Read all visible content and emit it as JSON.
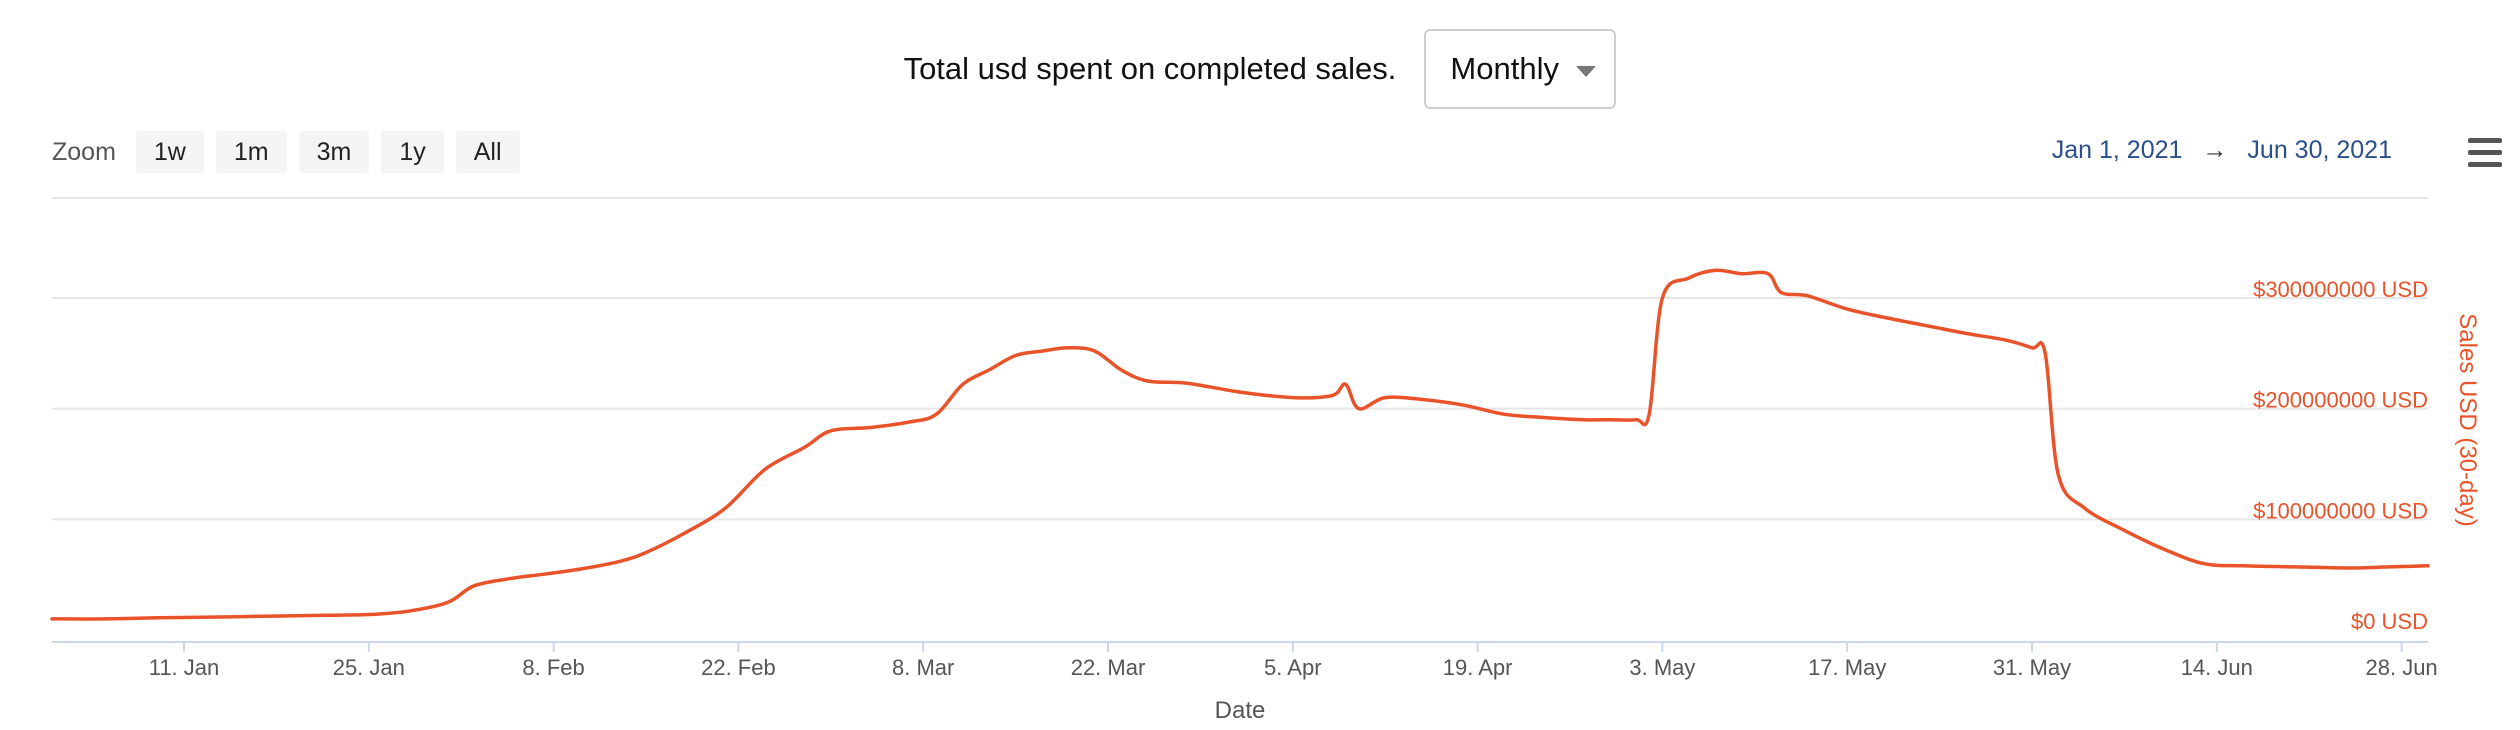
{
  "header": {
    "title": "Total usd spent on completed sales.",
    "period_select": "Monthly"
  },
  "zoom": {
    "label": "Zoom",
    "buttons": [
      "1w",
      "1m",
      "3m",
      "1y",
      "All"
    ]
  },
  "range": {
    "from": "Jan 1, 2021",
    "arrow": "→",
    "to": "Jun 30, 2021"
  },
  "colors": {
    "series": "#e8532a",
    "grid": "#e6e6e6",
    "axis": "#ccd6eb"
  },
  "icons": {
    "menu": "hamburger-menu-icon",
    "caret": "chevron-down-icon"
  },
  "chart_data": {
    "type": "line",
    "title": "",
    "xlabel": "Date",
    "ylabel": "Sales USD (30-day)",
    "grid": true,
    "legend": "none",
    "x_range": [
      "2021-01-01",
      "2021-06-30"
    ],
    "ylim": [
      0,
      300000000
    ],
    "y_ticks": [
      0,
      100000000,
      200000000,
      300000000
    ],
    "y_tick_labels": [
      "$0 USD",
      "$100000000 USD",
      "$200000000 USD",
      "$300000000 USD"
    ],
    "x_ticks": [
      "2021-01-11",
      "2021-01-25",
      "2021-02-08",
      "2021-02-22",
      "2021-03-08",
      "2021-03-22",
      "2021-04-05",
      "2021-04-19",
      "2021-05-03",
      "2021-05-17",
      "2021-05-31",
      "2021-06-14",
      "2021-06-28"
    ],
    "x_tick_labels": [
      "11. Jan",
      "25. Jan",
      "8. Feb",
      "22. Feb",
      "8. Mar",
      "22. Mar",
      "5. Apr",
      "19. Apr",
      "3. May",
      "17. May",
      "31. May",
      "14. Jun",
      "28. Jun"
    ],
    "series": [
      {
        "name": "",
        "x": [
          "2021-01-01",
          "2021-01-05",
          "2021-01-09",
          "2021-01-15",
          "2021-01-20",
          "2021-01-25",
          "2021-01-28",
          "2021-01-31",
          "2021-02-02",
          "2021-02-05",
          "2021-02-07",
          "2021-02-10",
          "2021-02-13",
          "2021-02-15",
          "2021-02-18",
          "2021-02-21",
          "2021-02-24",
          "2021-02-27",
          "2021-03-01",
          "2021-03-04",
          "2021-03-07",
          "2021-03-09",
          "2021-03-11",
          "2021-03-13",
          "2021-03-15",
          "2021-03-17",
          "2021-03-19",
          "2021-03-21",
          "2021-03-23",
          "2021-03-25",
          "2021-03-28",
          "2021-04-01",
          "2021-04-05",
          "2021-04-08",
          "2021-04-09",
          "2021-04-10",
          "2021-04-12",
          "2021-04-15",
          "2021-04-18",
          "2021-04-21",
          "2021-04-24",
          "2021-04-27",
          "2021-04-29",
          "2021-05-01",
          "2021-05-02",
          "2021-05-03",
          "2021-05-05",
          "2021-05-07",
          "2021-05-09",
          "2021-05-11",
          "2021-05-12",
          "2021-05-14",
          "2021-05-17",
          "2021-05-20",
          "2021-05-23",
          "2021-05-26",
          "2021-05-29",
          "2021-05-31",
          "2021-06-01",
          "2021-06-02",
          "2021-06-04",
          "2021-06-07",
          "2021-06-10",
          "2021-06-13",
          "2021-06-16",
          "2021-06-20",
          "2021-06-24",
          "2021-06-27",
          "2021-06-30"
        ],
        "values": [
          10000000,
          10000000,
          11000000,
          12000000,
          13000000,
          14000000,
          17000000,
          25000000,
          40000000,
          47000000,
          50000000,
          55000000,
          62000000,
          70000000,
          88000000,
          110000000,
          145000000,
          165000000,
          180000000,
          183000000,
          188000000,
          195000000,
          222000000,
          235000000,
          248000000,
          252000000,
          255000000,
          252000000,
          235000000,
          225000000,
          223000000,
          215000000,
          210000000,
          212000000,
          222000000,
          200000000,
          210000000,
          208000000,
          203000000,
          195000000,
          192000000,
          190000000,
          190000000,
          190000000,
          195000000,
          300000000,
          318000000,
          325000000,
          322000000,
          322000000,
          305000000,
          302000000,
          290000000,
          282000000,
          275000000,
          268000000,
          262000000,
          255000000,
          250000000,
          140000000,
          110000000,
          90000000,
          73000000,
          60000000,
          58000000,
          57000000,
          56000000,
          57000000,
          58000000
        ]
      }
    ]
  }
}
